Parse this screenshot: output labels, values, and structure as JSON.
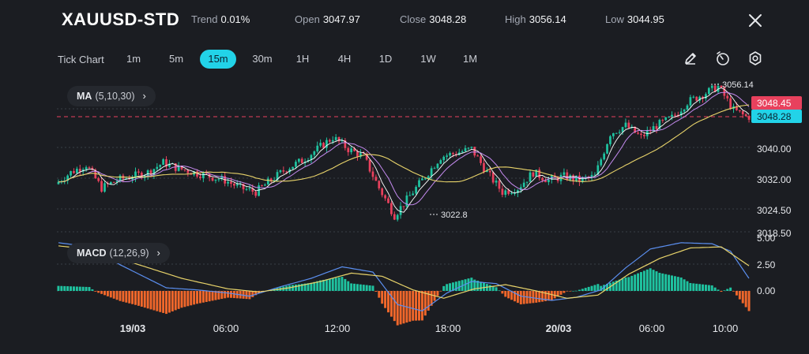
{
  "header": {
    "symbol": "XAUUSD-STD",
    "trend_label": "Trend",
    "trend_value": "0.01%",
    "open_label": "Open",
    "open_value": "3047.97",
    "close_label": "Close",
    "close_value": "3048.28",
    "high_label": "High",
    "high_value": "3056.14",
    "low_label": "Low",
    "low_value": "3044.95"
  },
  "toolbar": {
    "chart_type": "Tick Chart",
    "timeframes": [
      "1m",
      "5m",
      "15m",
      "30m",
      "1H",
      "4H",
      "1D",
      "1W",
      "1M"
    ],
    "active_timeframe": "15m",
    "icons": [
      "draw-icon",
      "timer-icon",
      "settings-icon"
    ]
  },
  "indicators": {
    "ma": {
      "name": "MA",
      "params": "(5,10,30)"
    },
    "macd": {
      "name": "MACD",
      "params": "(12,26,9)"
    }
  },
  "colors": {
    "up": "#1fc3a0",
    "down": "#e8415d",
    "accent": "#22d3e8",
    "ma5": "#ffffff",
    "ma10": "#c58bf0",
    "ma30": "#e8d36a",
    "macd_line": "#5b8ff0",
    "signal_line": "#e8d36a",
    "hist_pos": "#1fc3a0",
    "hist_neg": "#f0672b"
  },
  "chart_data": {
    "type": "candlestick",
    "price_axis_ticks": [
      "3040.00",
      "3032.00",
      "3024.50",
      "3018.50"
    ],
    "price_tags": {
      "high": "3048.45",
      "close": "3048.28"
    },
    "annotations": {
      "max": "3056.14",
      "min": "3022.8"
    },
    "time_axis": [
      {
        "label": "19/03",
        "bold": true
      },
      {
        "label": "06:00",
        "bold": false
      },
      {
        "label": "12:00",
        "bold": false
      },
      {
        "label": "18:00",
        "bold": false
      },
      {
        "label": "20/03",
        "bold": true
      },
      {
        "label": "06:00",
        "bold": false
      },
      {
        "label": "10:00",
        "bold": false
      }
    ],
    "macd_axis_ticks": [
      "5.00",
      "2.50",
      "0.00"
    ],
    "price_path": [
      [
        0,
        3031
      ],
      [
        5,
        3034
      ],
      [
        10,
        3036
      ],
      [
        15,
        3030
      ],
      [
        20,
        3032
      ],
      [
        25,
        3033
      ],
      [
        30,
        3034
      ],
      [
        35,
        3036.5
      ],
      [
        40,
        3035
      ],
      [
        45,
        3034
      ],
      [
        50,
        3033
      ],
      [
        55,
        3032
      ],
      [
        60,
        3030
      ],
      [
        65,
        3029
      ],
      [
        70,
        3032
      ],
      [
        75,
        3035
      ],
      [
        80,
        3037
      ],
      [
        85,
        3040
      ],
      [
        90,
        3043
      ],
      [
        95,
        3040
      ],
      [
        100,
        3038
      ],
      [
        105,
        3030
      ],
      [
        110,
        3023
      ],
      [
        115,
        3028
      ],
      [
        120,
        3033
      ],
      [
        125,
        3038
      ],
      [
        130,
        3039
      ],
      [
        135,
        3040
      ],
      [
        140,
        3034
      ],
      [
        145,
        3029
      ],
      [
        150,
        3030
      ],
      [
        155,
        3034
      ],
      [
        160,
        3032
      ],
      [
        165,
        3033
      ],
      [
        170,
        3032
      ],
      [
        175,
        3033
      ],
      [
        180,
        3044
      ],
      [
        185,
        3046
      ],
      [
        190,
        3043
      ],
      [
        195,
        3046
      ],
      [
        200,
        3048
      ],
      [
        205,
        3052
      ],
      [
        210,
        3054
      ],
      [
        215,
        3056
      ],
      [
        220,
        3050
      ],
      [
        224,
        3048.28
      ]
    ],
    "macd_path": [
      [
        0,
        4.6
      ],
      [
        10,
        4.2
      ],
      [
        20,
        2.5
      ],
      [
        35,
        0.3
      ],
      [
        45,
        0.1
      ],
      [
        55,
        -0.2
      ],
      [
        62,
        -0.5
      ],
      [
        72,
        0.4
      ],
      [
        82,
        1.2
      ],
      [
        92,
        2.3
      ],
      [
        102,
        1.8
      ],
      [
        110,
        -1.3
      ],
      [
        118,
        -1.9
      ],
      [
        126,
        -0.2
      ],
      [
        134,
        0.9
      ],
      [
        142,
        0.7
      ],
      [
        150,
        -0.5
      ],
      [
        160,
        -0.9
      ],
      [
        168,
        -0.6
      ],
      [
        176,
        0.1
      ],
      [
        184,
        2.2
      ],
      [
        192,
        4.0
      ],
      [
        202,
        4.6
      ],
      [
        212,
        4.5
      ],
      [
        218,
        3.8
      ],
      [
        224,
        1.2
      ]
    ],
    "signal_path": [
      [
        0,
        4.3
      ],
      [
        12,
        3.9
      ],
      [
        25,
        2.6
      ],
      [
        40,
        1.2
      ],
      [
        55,
        0.2
      ],
      [
        65,
        -0.1
      ],
      [
        75,
        0.3
      ],
      [
        85,
        0.9
      ],
      [
        95,
        1.7
      ],
      [
        105,
        1.4
      ],
      [
        115,
        0.1
      ],
      [
        125,
        -0.7
      ],
      [
        135,
        0.2
      ],
      [
        145,
        0.6
      ],
      [
        155,
        0.0
      ],
      [
        165,
        -0.7
      ],
      [
        175,
        -0.4
      ],
      [
        185,
        1.6
      ],
      [
        195,
        3.1
      ],
      [
        205,
        4.1
      ],
      [
        215,
        4.2
      ],
      [
        224,
        2.4
      ]
    ]
  }
}
